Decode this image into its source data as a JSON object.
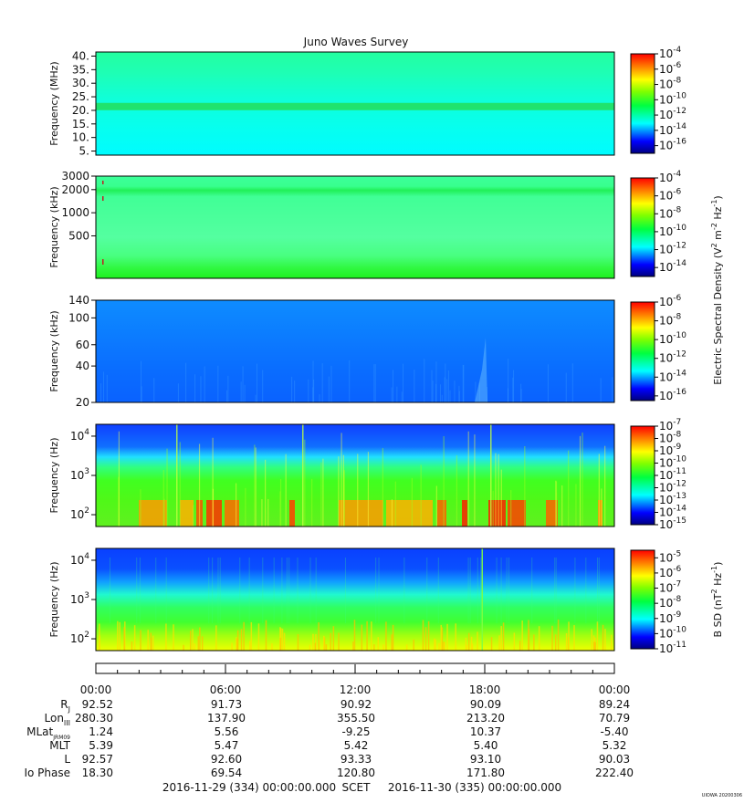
{
  "chart_data": {
    "type": "heatmap",
    "title": "Juno Waves Survey",
    "panels": [
      {
        "id": "hfr-high",
        "ylabel": "Frequency (MHz)",
        "yscale": "linear",
        "ylim": [
          3.5,
          41.5
        ],
        "yticks": [
          5,
          10,
          15,
          20,
          25,
          30,
          35,
          40
        ],
        "ytick_labels": [
          "5.",
          "10.",
          "15.",
          "20.",
          "25.",
          "30.",
          "35.",
          "40."
        ],
        "colorbar": {
          "exp_ticks": [
            "-4",
            "-6",
            "-8",
            "-10",
            "-12",
            "-14",
            "-16"
          ],
          "range": [
            -17,
            -4
          ]
        },
        "features": [
          {
            "label": "21.4 MHz band",
            "y": 21.4
          }
        ]
      },
      {
        "id": "hfr-low",
        "ylabel": "Frequency (kHz)",
        "yscale": "log",
        "ylim": [
          140,
          3000
        ],
        "yticks": [
          500,
          1000,
          2000,
          3000
        ],
        "ytick_labels": [
          "500",
          "1000",
          "2000",
          "3000"
        ],
        "colorbar": {
          "exp_ticks": [
            "-4",
            "-6",
            "-8",
            "-10",
            "-12",
            "-14"
          ],
          "range": [
            -15,
            -4
          ]
        }
      },
      {
        "id": "lfr-high",
        "ylabel": "Frequency (kHz)",
        "yscale": "log",
        "ylim": [
          20,
          140
        ],
        "yticks": [
          20,
          40,
          60,
          100,
          140
        ],
        "ytick_labels": [
          "20",
          "40",
          "60",
          "100",
          "140"
        ],
        "colorbar": {
          "exp_ticks": [
            "-6",
            "-8",
            "-10",
            "-12",
            "-14",
            "-16"
          ],
          "range": [
            -16.5,
            -6
          ]
        }
      },
      {
        "id": "lfr-e",
        "ylabel": "Frequency (Hz)",
        "yscale": "log",
        "ylim": [
          50,
          20000
        ],
        "yticks": [
          100,
          1000,
          10000
        ],
        "ytick_exps": [
          "2",
          "3",
          "4"
        ],
        "colorbar": {
          "exp_ticks": [
            "-7",
            "-8",
            "-9",
            "-10",
            "-11",
            "-12",
            "-13",
            "-14",
            "-15"
          ],
          "range": [
            -15,
            -7
          ]
        }
      },
      {
        "id": "lfr-b",
        "ylabel": "Frequency (Hz)",
        "yscale": "log",
        "ylim": [
          50,
          20000
        ],
        "yticks": [
          100,
          1000,
          10000
        ],
        "ytick_exps": [
          "2",
          "3",
          "4"
        ],
        "colorbar": {
          "exp_ticks": [
            "-5",
            "-6",
            "-7",
            "-8",
            "-9",
            "-10",
            "-11"
          ],
          "range": [
            -11,
            -4.5
          ]
        }
      }
    ],
    "colorbar_labels": {
      "electric": {
        "pre": "Electric Spectral Density (V",
        "s1": "2",
        "mid": " m",
        "s2": "-2",
        "mid2": " Hz",
        "s3": "-1",
        "post": ")"
      },
      "magnetic": {
        "pre": "B SD (nT",
        "s1": "2",
        "mid": " Hz",
        "s2": "-1",
        "post": ")"
      }
    },
    "x": {
      "ticks": [
        "00:00",
        "06:00",
        "12:00",
        "18:00",
        "00:00"
      ],
      "tick_hours": [
        0,
        6,
        12,
        18,
        24
      ]
    },
    "ephemeris": [
      {
        "label": "R",
        "sub": "J",
        "values": [
          "92.52",
          "91.73",
          "90.92",
          "90.09",
          "89.24"
        ]
      },
      {
        "label": "Lon",
        "sub": "III",
        "values": [
          "280.30",
          "137.90",
          "355.50",
          "213.20",
          "70.79"
        ]
      },
      {
        "label": "MLat",
        "sub": "JRM09",
        "values": [
          "1.24",
          "5.56",
          "-9.25",
          "10.37",
          "-5.40"
        ]
      },
      {
        "label": "MLT",
        "sub": "",
        "values": [
          "5.39",
          "5.47",
          "5.42",
          "5.40",
          "5.32"
        ]
      },
      {
        "label": "L",
        "sub": "",
        "values": [
          "92.57",
          "92.60",
          "93.33",
          "93.10",
          "90.03"
        ]
      },
      {
        "label": "Io Phase",
        "sub": "",
        "values": [
          "18.30",
          "69.54",
          "120.80",
          "171.80",
          "222.40"
        ]
      }
    ],
    "footer": {
      "start": "2016-11-29 (334) 00:00:00.000",
      "scet": "SCET",
      "end": "2016-11-30 (335) 00:00:00.000"
    },
    "stamp": "UIOWA 20200306"
  }
}
